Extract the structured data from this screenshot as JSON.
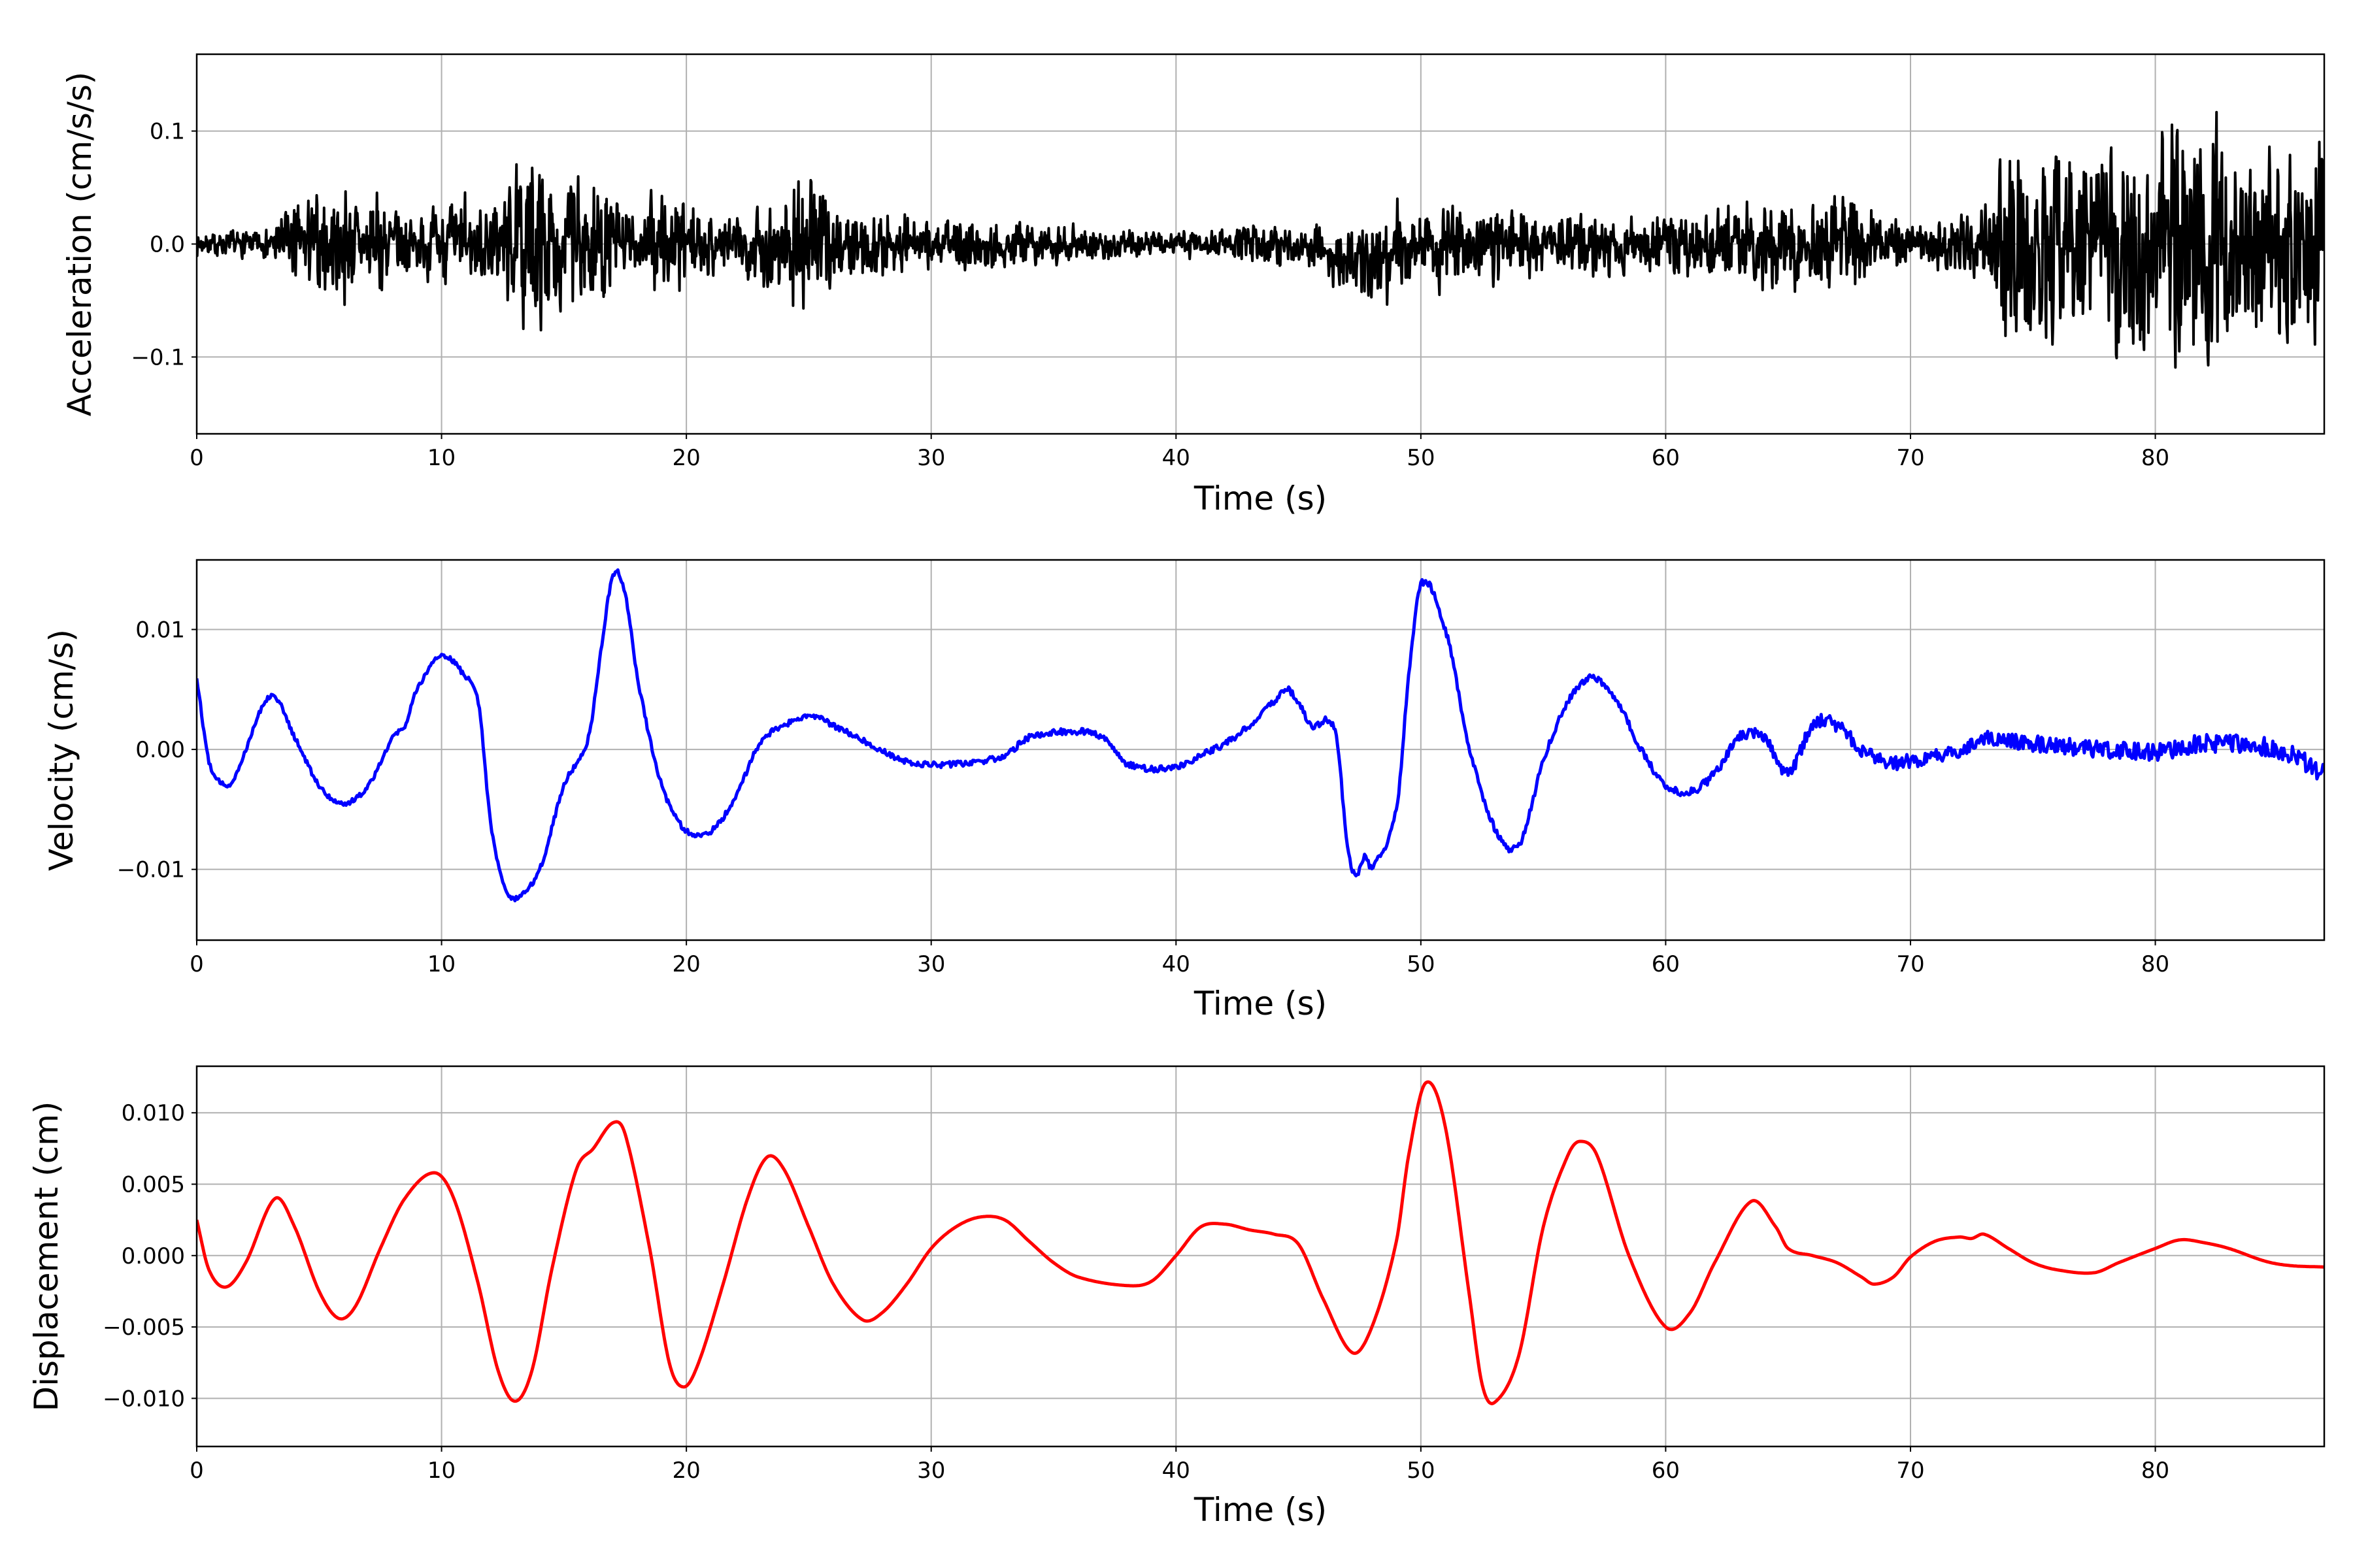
{
  "chart_data": [
    {
      "type": "line",
      "name": "acceleration",
      "xlabel": "Time (s)",
      "ylabel": "Acceleration (cm/s/s)",
      "xlim": [
        0,
        86.9
      ],
      "ylim": [
        -0.168,
        0.168
      ],
      "xticks": [
        0,
        10,
        20,
        30,
        40,
        50,
        60,
        70,
        80
      ],
      "xtick_labels": [
        "0",
        "10",
        "20",
        "30",
        "40",
        "50",
        "60",
        "70",
        "80"
      ],
      "yticks": [
        -0.1,
        0.0,
        0.1
      ],
      "ytick_labels": [
        "−0.1",
        "0.0",
        "0.1"
      ],
      "grid": true,
      "color": "#000000",
      "dt": 0.02,
      "seed": 7,
      "note_series": "noise record; amplitude envelope (t, amp) with offset segments",
      "envelope": [
        [
          0,
          0.012
        ],
        [
          3,
          0.015
        ],
        [
          3.5,
          0.04
        ],
        [
          6,
          0.06
        ],
        [
          8,
          0.05
        ],
        [
          9,
          0.03
        ],
        [
          11,
          0.05
        ],
        [
          12,
          0.04
        ],
        [
          13.5,
          0.09
        ],
        [
          15,
          0.07
        ],
        [
          16,
          0.08
        ],
        [
          18,
          0.03
        ],
        [
          19,
          0.07
        ],
        [
          20,
          0.04
        ],
        [
          22,
          0.03
        ],
        [
          25,
          0.08
        ],
        [
          26,
          0.04
        ],
        [
          30,
          0.03
        ],
        [
          35,
          0.02
        ],
        [
          40,
          0.013
        ],
        [
          44,
          0.02
        ],
        [
          46,
          0.025
        ],
        [
          49,
          0.05
        ],
        [
          53,
          0.04
        ],
        [
          56,
          0.03
        ],
        [
          60,
          0.03
        ],
        [
          65,
          0.05
        ],
        [
          68,
          0.05
        ],
        [
          70,
          0.02
        ],
        [
          73,
          0.04
        ],
        [
          74,
          0.11
        ],
        [
          76,
          0.1
        ],
        [
          78,
          0.12
        ],
        [
          80,
          0.12
        ],
        [
          81,
          0.14
        ],
        [
          84,
          0.1
        ],
        [
          87,
          0.12
        ]
      ],
      "offset": [
        [
          0,
          0
        ],
        [
          45.5,
          0
        ],
        [
          46.5,
          -0.012
        ],
        [
          48.7,
          -0.014
        ],
        [
          49,
          0
        ],
        [
          87,
          0
        ]
      ]
    },
    {
      "type": "line",
      "name": "velocity",
      "xlabel": "Time (s)",
      "ylabel": "Velocity (cm/s)",
      "xlim": [
        0,
        86.9
      ],
      "ylim": [
        -0.0159,
        0.0158
      ],
      "xticks": [
        0,
        10,
        20,
        30,
        40,
        50,
        60,
        70,
        80
      ],
      "xtick_labels": [
        "0",
        "10",
        "20",
        "30",
        "40",
        "50",
        "60",
        "70",
        "80"
      ],
      "yticks": [
        -0.01,
        0.0,
        0.01
      ],
      "ytick_labels": [
        "−0.01",
        "0.00",
        "0.01"
      ],
      "grid": true,
      "color": "#0000ff",
      "noise": [
        [
          0,
          0.0002
        ],
        [
          60,
          0.0003
        ],
        [
          68,
          0.0006
        ],
        [
          87,
          0.0008
        ]
      ],
      "points": [
        [
          0,
          0.006
        ],
        [
          0.5,
          -0.001
        ],
        [
          1,
          -0.0028
        ],
        [
          1.5,
          -0.0025
        ],
        [
          3,
          0.0045
        ],
        [
          4,
          0.001
        ],
        [
          5,
          -0.003
        ],
        [
          6,
          -0.0045
        ],
        [
          7,
          -0.003
        ],
        [
          8,
          0.001
        ],
        [
          8.5,
          0.002
        ],
        [
          9,
          0.005
        ],
        [
          10,
          0.0078
        ],
        [
          11,
          0.006
        ],
        [
          11.5,
          0.004
        ],
        [
          12,
          -0.006
        ],
        [
          12.5,
          -0.011
        ],
        [
          13,
          -0.0125
        ],
        [
          14,
          -0.01
        ],
        [
          15,
          -0.003
        ],
        [
          16,
          0.001
        ],
        [
          16.5,
          0.008
        ],
        [
          17,
          0.0145
        ],
        [
          17.5,
          0.013
        ],
        [
          18,
          0.006
        ],
        [
          19,
          -0.003
        ],
        [
          20,
          -0.0068
        ],
        [
          21,
          -0.0068
        ],
        [
          22,
          -0.004
        ],
        [
          23,
          0.0005
        ],
        [
          24,
          0.002
        ],
        [
          25,
          0.0028
        ],
        [
          26,
          0.002
        ],
        [
          27,
          0.001
        ],
        [
          29,
          -0.001
        ],
        [
          31,
          -0.0012
        ],
        [
          33,
          -0.0005
        ],
        [
          34,
          0.001
        ],
        [
          36,
          0.0015
        ],
        [
          37,
          0.001
        ],
        [
          38,
          -0.0012
        ],
        [
          40,
          -0.0015
        ],
        [
          41,
          -0.0005
        ],
        [
          42,
          0.0005
        ],
        [
          43,
          0.002
        ],
        [
          44,
          0.004
        ],
        [
          44.5,
          0.005
        ],
        [
          45,
          0.004
        ],
        [
          45.5,
          0.002
        ],
        [
          46.5,
          0.0015
        ],
        [
          47,
          -0.008
        ],
        [
          47.3,
          -0.0105
        ],
        [
          47.7,
          -0.009
        ],
        [
          48,
          -0.0098
        ],
        [
          49,
          -0.005
        ],
        [
          49.5,
          0.006
        ],
        [
          50,
          0.0138
        ],
        [
          51,
          0.01
        ],
        [
          52,
          0
        ],
        [
          53,
          -0.0065
        ],
        [
          54,
          -0.008
        ],
        [
          55,
          -0.001
        ],
        [
          56,
          0.004
        ],
        [
          57,
          0.006
        ],
        [
          58,
          0.004
        ],
        [
          59,
          0
        ],
        [
          60,
          -0.003
        ],
        [
          61,
          -0.0035
        ],
        [
          62,
          -0.002
        ],
        [
          63,
          0.001
        ],
        [
          64,
          0.001
        ],
        [
          65,
          -0.002
        ],
        [
          66,
          0.002
        ],
        [
          67,
          0.002
        ],
        [
          68,
          0
        ],
        [
          69,
          -0.001
        ],
        [
          70,
          -0.001
        ],
        [
          72,
          0
        ],
        [
          73,
          0.001
        ],
        [
          75,
          0.0005
        ],
        [
          80,
          -0.0002
        ],
        [
          82,
          0.0005
        ],
        [
          85,
          0
        ],
        [
          86.9,
          -0.002
        ]
      ]
    },
    {
      "type": "line",
      "name": "displacement",
      "xlabel": "Time (s)",
      "ylabel": "Displacement (cm)",
      "xlim": [
        0,
        86.9
      ],
      "ylim": [
        -0.01337,
        0.01326
      ],
      "xticks": [
        0,
        10,
        20,
        30,
        40,
        50,
        60,
        70,
        80
      ],
      "xtick_labels": [
        "0",
        "10",
        "20",
        "30",
        "40",
        "50",
        "60",
        "70",
        "80"
      ],
      "yticks": [
        -0.01,
        -0.005,
        0.0,
        0.005,
        0.01
      ],
      "ytick_labels": [
        "−0.010",
        "−0.005",
        "0.000",
        "0.005",
        "0.010"
      ],
      "grid": true,
      "color": "#ff0000",
      "points": [
        [
          0,
          0.0025
        ],
        [
          0.5,
          -0.001
        ],
        [
          1.2,
          -0.0022
        ],
        [
          2,
          -0.0005
        ],
        [
          3.2,
          0.004
        ],
        [
          4,
          0.002
        ],
        [
          5,
          -0.0025
        ],
        [
          5.8,
          -0.0044
        ],
        [
          6.5,
          -0.0035
        ],
        [
          7.5,
          0.0005
        ],
        [
          8.5,
          0.004
        ],
        [
          9.7,
          0.0058
        ],
        [
          10.5,
          0.004
        ],
        [
          11.5,
          -0.002
        ],
        [
          12.3,
          -0.008
        ],
        [
          13,
          -0.0102
        ],
        [
          13.7,
          -0.008
        ],
        [
          14.5,
          -0.001
        ],
        [
          15.5,
          0.006
        ],
        [
          16.2,
          0.0075
        ],
        [
          17,
          0.0093
        ],
        [
          17.5,
          0.0085
        ],
        [
          18.5,
          0.0005
        ],
        [
          19.3,
          -0.0075
        ],
        [
          19.9,
          -0.0092
        ],
        [
          20.5,
          -0.0075
        ],
        [
          21.5,
          -0.002
        ],
        [
          22.5,
          0.004
        ],
        [
          23.3,
          0.0069
        ],
        [
          24,
          0.006
        ],
        [
          25,
          0.002
        ],
        [
          26,
          -0.002
        ],
        [
          27.2,
          -0.0045
        ],
        [
          28,
          -0.004
        ],
        [
          29,
          -0.002
        ],
        [
          30,
          0.0005
        ],
        [
          31,
          0.002
        ],
        [
          32,
          0.0027
        ],
        [
          33,
          0.0025
        ],
        [
          34,
          0.001
        ],
        [
          35,
          -0.0005
        ],
        [
          36,
          -0.0015
        ],
        [
          38,
          -0.0021
        ],
        [
          39,
          -0.0018
        ],
        [
          40,
          0
        ],
        [
          41,
          0.002
        ],
        [
          42,
          0.0022
        ],
        [
          43,
          0.0018
        ],
        [
          44,
          0.0015
        ],
        [
          45,
          0.0008
        ],
        [
          46,
          -0.003
        ],
        [
          47.2,
          -0.0068
        ],
        [
          48,
          -0.005
        ],
        [
          49,
          0.001
        ],
        [
          49.5,
          0.007
        ],
        [
          50.2,
          0.0121
        ],
        [
          51,
          0.009
        ],
        [
          52,
          -0.003
        ],
        [
          52.5,
          -0.009
        ],
        [
          53,
          -0.0103
        ],
        [
          54,
          -0.007
        ],
        [
          55,
          0.002
        ],
        [
          56,
          0.007
        ],
        [
          56.5,
          0.008
        ],
        [
          57.2,
          0.007
        ],
        [
          58.5,
          0
        ],
        [
          60,
          -0.005
        ],
        [
          61,
          -0.004
        ],
        [
          62,
          -0.0005
        ],
        [
          63.5,
          0.0038
        ],
        [
          64.5,
          0.002
        ],
        [
          65,
          0.0005
        ],
        [
          66,
          0
        ],
        [
          67,
          -0.0005
        ],
        [
          68,
          -0.0015
        ],
        [
          68.5,
          -0.002
        ],
        [
          69.3,
          -0.0015
        ],
        [
          70,
          -0.0001
        ],
        [
          71,
          0.001
        ],
        [
          72,
          0.0013
        ],
        [
          72.5,
          0.0012
        ],
        [
          73,
          0.0015
        ],
        [
          74,
          0.0005
        ],
        [
          75,
          -0.0005
        ],
        [
          76,
          -0.001
        ],
        [
          77.5,
          -0.0012
        ],
        [
          78.5,
          -0.0005
        ],
        [
          80,
          0.0005
        ],
        [
          81,
          0.0011
        ],
        [
          82,
          0.0009
        ],
        [
          83,
          0.0005
        ],
        [
          84.5,
          -0.0004
        ],
        [
          85.5,
          -0.0007
        ],
        [
          86.9,
          -0.0008
        ]
      ]
    }
  ]
}
